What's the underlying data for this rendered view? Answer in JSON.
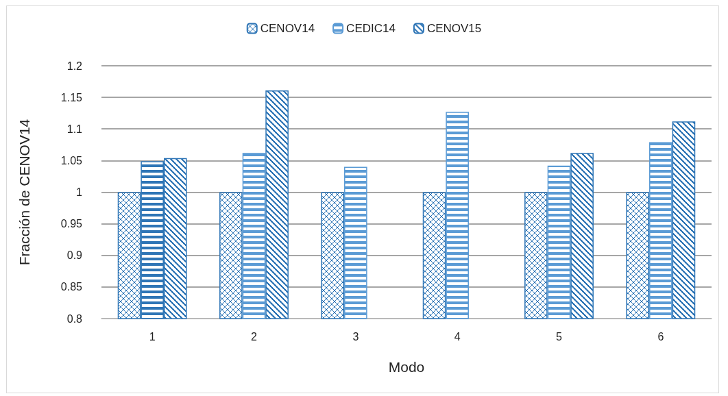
{
  "chart_data": {
    "type": "bar",
    "xlabel": "Modo",
    "ylabel": "Fracción de CENOV14",
    "categories": [
      "1",
      "2",
      "3",
      "4",
      "5",
      "6"
    ],
    "series": [
      {
        "name": "CENOV14",
        "color": "#2e75b6",
        "values": [
          1,
          1,
          1,
          1,
          1,
          1
        ]
      },
      {
        "name": "CEDIC14",
        "color": "#5b9bd5",
        "colors": [
          "#2e75b6",
          "#5b9bd5",
          "#5b9bd5",
          "#5b9bd5",
          "#5b9bd5",
          "#5b9bd5"
        ],
        "values": [
          1.049,
          1.062,
          1.04,
          1.127,
          1.042,
          1.079
        ]
      },
      {
        "name": "CENOV15",
        "color": "#2e75b6",
        "values": [
          1.054,
          1.161,
          null,
          null,
          1.062,
          1.112
        ]
      }
    ],
    "ylim": [
      0.8,
      1.2
    ],
    "yticks": [
      0.8,
      0.85,
      0.9,
      0.95,
      1,
      1.05,
      1.1,
      1.15,
      1.2
    ],
    "grid": "y",
    "legend": "top"
  }
}
